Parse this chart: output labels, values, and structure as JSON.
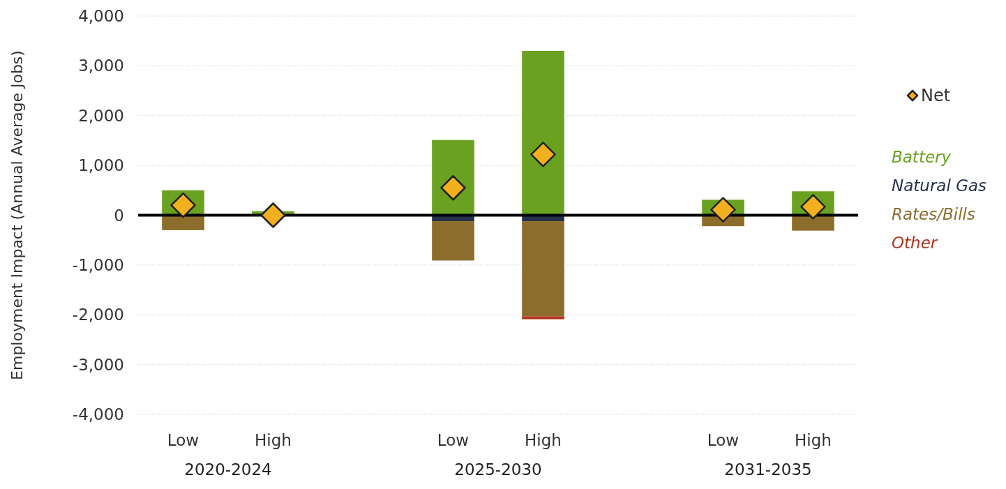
{
  "chart_data": {
    "type": "bar",
    "stacked": true,
    "ylabel": "Employment Impact (Annual Average Jobs)",
    "categories": [
      "Low",
      "High",
      null,
      "Low",
      "High",
      null,
      "Low",
      "High"
    ],
    "series": [
      {
        "name": "Battery",
        "color": "#6aa121",
        "values": [
          500,
          80,
          null,
          1510,
          3300,
          null,
          310,
          480
        ]
      },
      {
        "name": "Natural Gas",
        "color": "#26304a",
        "values": [
          null,
          null,
          null,
          -120,
          -120,
          null,
          null,
          null
        ]
      },
      {
        "name": "Rates/Bills",
        "color": "#8c6d2c",
        "values": [
          -300,
          null,
          null,
          -790,
          -1910,
          null,
          -220,
          -310
        ]
      },
      {
        "name": "Other",
        "color": "#b0351b",
        "values": [
          0,
          0,
          null,
          0,
          -60,
          null,
          0,
          0
        ]
      },
      {
        "name": "Net",
        "type": "scatter",
        "marker": "diamond",
        "color": "#f2b01e",
        "values": [
          200,
          0,
          null,
          550,
          1220,
          null,
          110,
          170
        ]
      }
    ],
    "annotations": [
      "2020-2024",
      "2025-2030",
      "2031-2035"
    ],
    "ylim": [
      -4000,
      4000
    ],
    "yticks": [
      {
        "value": -4000,
        "label": "-4,000"
      },
      {
        "value": -3000,
        "label": "-3,000"
      },
      {
        "value": -2000,
        "label": "-2,000"
      },
      {
        "value": -1000,
        "label": "-1,000"
      },
      0,
      {
        "value": 1000,
        "label": "1,000"
      },
      {
        "value": 2000,
        "label": "2,000"
      },
      {
        "value": 3000,
        "label": "3,000"
      },
      {
        "value": 4000,
        "label": "4,000"
      }
    ],
    "grid": "y",
    "legend": "right"
  }
}
